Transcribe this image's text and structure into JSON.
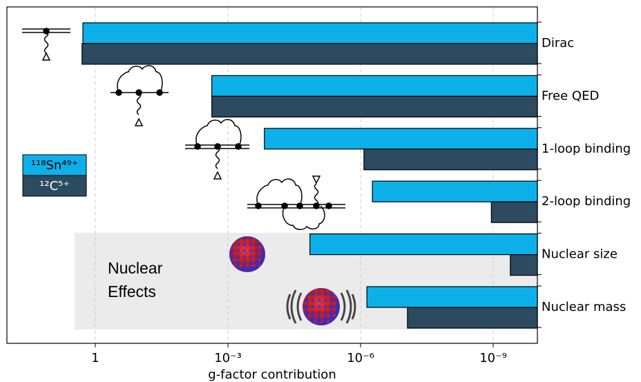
{
  "chart_data": {
    "type": "bar",
    "orientation": "horizontal",
    "xlabel": "g-factor contribution",
    "categories": [
      "Dirac",
      "Free QED",
      "1-loop binding",
      "2-loop binding",
      "Nuclear size",
      "Nuclear mass"
    ],
    "series": [
      {
        "name": "¹¹⁸Sn⁴⁹⁺",
        "color": "#0db0e8",
        "values": [
          1.91,
          0.00232,
          0.00015,
          5.4e-07,
          1.4e-05,
          7.2e-07
        ]
      },
      {
        "name": "¹²C⁵⁺",
        "color": "#2c4a60",
        "values": [
          2.0,
          0.00232,
          8.4e-07,
          1.1e-09,
          4.1e-10,
          8.7e-08
        ]
      }
    ],
    "xscale": "log",
    "xlim": [
      100,
      1e-10
    ],
    "xticks": [
      1,
      {
        "value": 0.001,
        "label": "10⁻³"
      },
      {
        "value": 1e-06,
        "label": "10⁻⁶"
      },
      {
        "value": 1e-09,
        "label": "10⁻⁹"
      }
    ],
    "grid": true,
    "annotation": [
      "Nuclear",
      "Effects"
    ]
  }
}
